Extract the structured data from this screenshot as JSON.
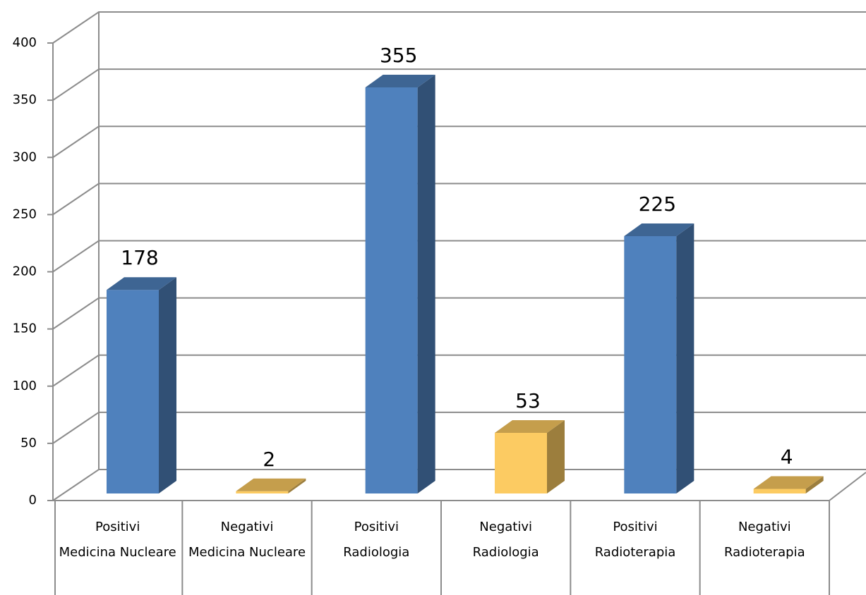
{
  "chart_data": {
    "type": "bar3d",
    "categories": [
      [
        "Positivi",
        "Medicina Nucleare"
      ],
      [
        "Negativi",
        "Medicina Nucleare"
      ],
      [
        "Positivi",
        "Radiologia"
      ],
      [
        "Negativi",
        "Radiologia"
      ],
      [
        "Positivi",
        "Radioterapia"
      ],
      [
        "Negativi",
        "Radioterapia"
      ]
    ],
    "values": [
      178,
      2,
      355,
      53,
      225,
      4
    ],
    "colors": [
      "#4f81bd",
      "#fccb62",
      "#4f81bd",
      "#fccb62",
      "#4f81bd",
      "#fccb62"
    ],
    "ylim": [
      0,
      400
    ],
    "yticks": [
      0,
      50,
      100,
      150,
      200,
      250,
      300,
      350,
      400
    ],
    "grid": true
  }
}
